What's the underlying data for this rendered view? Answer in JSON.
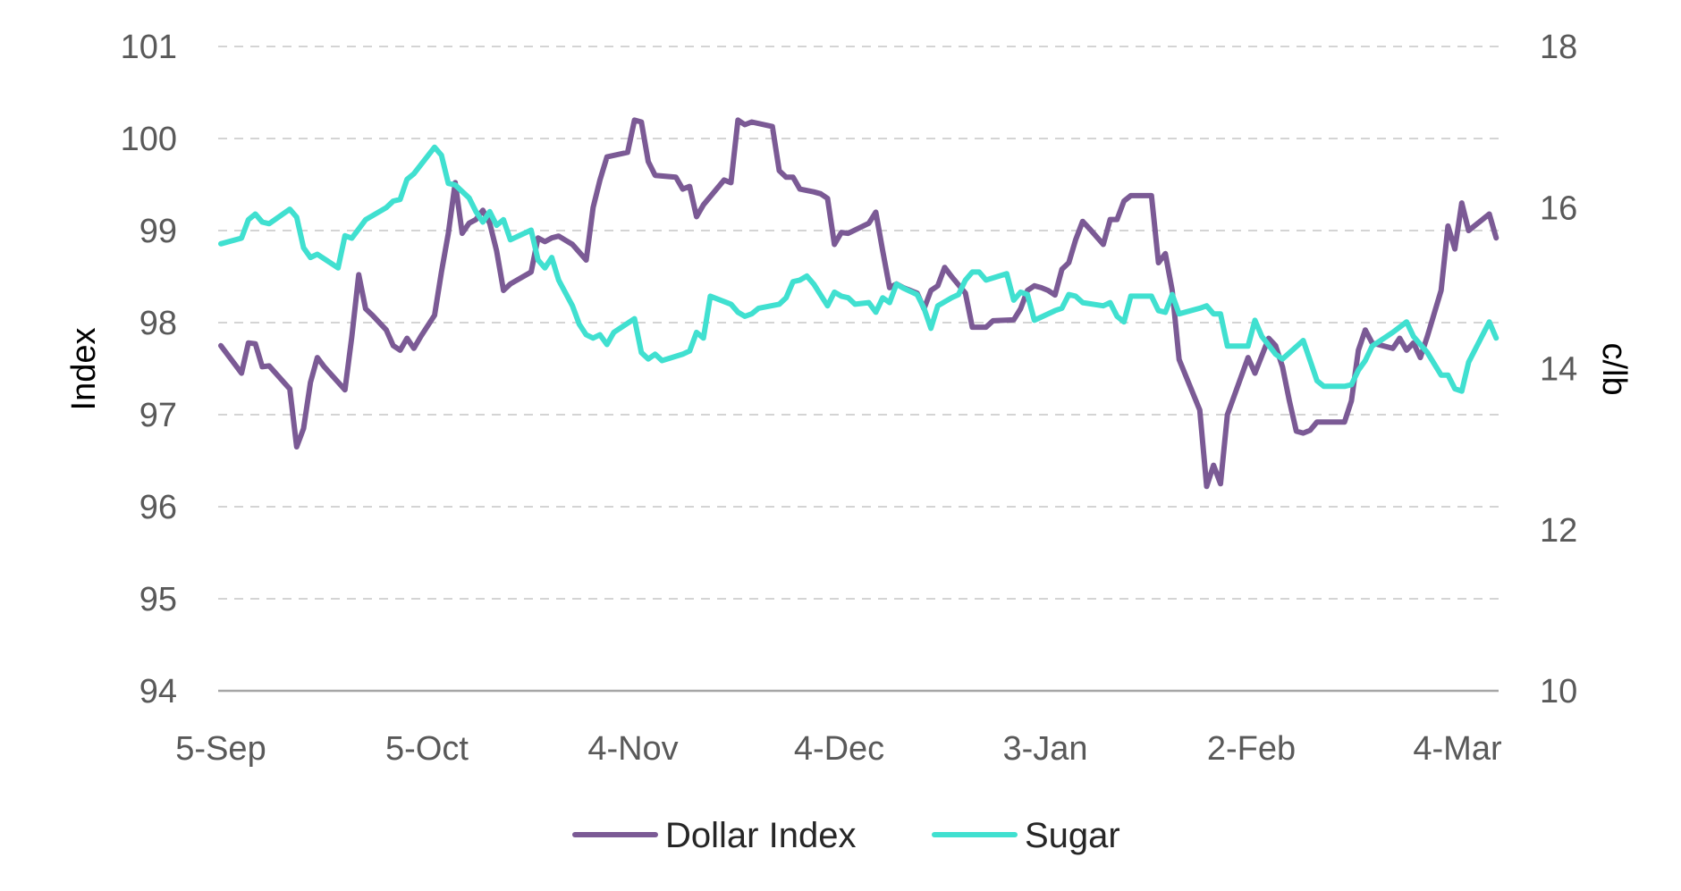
{
  "chart_data": {
    "type": "line",
    "title": "",
    "ylabel": "Index",
    "y2label": "c/lb",
    "ylim": [
      94,
      101
    ],
    "y2lim": [
      10,
      18
    ],
    "yticks": [
      94,
      95,
      96,
      97,
      98,
      99,
      100,
      101
    ],
    "y2ticks": [
      10,
      12,
      14,
      16,
      18
    ],
    "grid": true,
    "legend_position": "bottom",
    "categories": [
      "5-Sep",
      "5-Oct",
      "4-Nov",
      "4-Dec",
      "3-Jan",
      "2-Feb",
      "4-Mar"
    ],
    "x_range_days": [
      0,
      187
    ],
    "series": [
      {
        "name": "Dollar Index",
        "axis": "left",
        "color": "#7b5a95",
        "points": [
          [
            0,
            97.75
          ],
          [
            3,
            97.45
          ],
          [
            4,
            97.78
          ],
          [
            5,
            97.77
          ],
          [
            6,
            97.52
          ],
          [
            7,
            97.53
          ],
          [
            10,
            97.28
          ],
          [
            11,
            96.65
          ],
          [
            12,
            96.85
          ],
          [
            13,
            97.35
          ],
          [
            14,
            97.62
          ],
          [
            15,
            97.52
          ],
          [
            18,
            97.27
          ],
          [
            19,
            97.85
          ],
          [
            20,
            98.52
          ],
          [
            21,
            98.15
          ],
          [
            22,
            98.08
          ],
          [
            24,
            97.92
          ],
          [
            25,
            97.75
          ],
          [
            26,
            97.7
          ],
          [
            27,
            97.83
          ],
          [
            28,
            97.72
          ],
          [
            29,
            97.85
          ],
          [
            31,
            98.08
          ],
          [
            32,
            98.55
          ],
          [
            33,
            98.97
          ],
          [
            34,
            99.52
          ],
          [
            35,
            98.97
          ],
          [
            36,
            99.08
          ],
          [
            37,
            99.12
          ],
          [
            38,
            99.22
          ],
          [
            39,
            99.08
          ],
          [
            40,
            98.78
          ],
          [
            41,
            98.35
          ],
          [
            42,
            98.42
          ],
          [
            45,
            98.55
          ],
          [
            46,
            98.92
          ],
          [
            47,
            98.88
          ],
          [
            48,
            98.92
          ],
          [
            49,
            98.94
          ],
          [
            51,
            98.85
          ],
          [
            53,
            98.68
          ],
          [
            54,
            99.25
          ],
          [
            55,
            99.55
          ],
          [
            56,
            99.8
          ],
          [
            59,
            99.85
          ],
          [
            60,
            100.2
          ],
          [
            61,
            100.18
          ],
          [
            62,
            99.75
          ],
          [
            63,
            99.6
          ],
          [
            66,
            99.58
          ],
          [
            67,
            99.45
          ],
          [
            68,
            99.48
          ],
          [
            69,
            99.15
          ],
          [
            70,
            99.28
          ],
          [
            73,
            99.55
          ],
          [
            74,
            99.52
          ],
          [
            75,
            100.2
          ],
          [
            76,
            100.15
          ],
          [
            77,
            100.18
          ],
          [
            80,
            100.13
          ],
          [
            81,
            99.65
          ],
          [
            82,
            99.58
          ],
          [
            83,
            99.58
          ],
          [
            84,
            99.45
          ],
          [
            86,
            99.42
          ],
          [
            87,
            99.4
          ],
          [
            88,
            99.35
          ],
          [
            89,
            98.85
          ],
          [
            90,
            98.98
          ],
          [
            91,
            98.97
          ],
          [
            94,
            99.08
          ],
          [
            95,
            99.2
          ],
          [
            96,
            98.78
          ],
          [
            97,
            98.38
          ],
          [
            98,
            98.42
          ],
          [
            99,
            98.38
          ],
          [
            101,
            98.32
          ],
          [
            102,
            98.15
          ],
          [
            103,
            98.35
          ],
          [
            104,
            98.4
          ],
          [
            105,
            98.6
          ],
          [
            106,
            98.5
          ],
          [
            108,
            98.32
          ],
          [
            109,
            97.95
          ],
          [
            111,
            97.95
          ],
          [
            112,
            98.02
          ],
          [
            115,
            98.03
          ],
          [
            116,
            98.15
          ],
          [
            117,
            98.35
          ],
          [
            118,
            98.4
          ],
          [
            119,
            98.38
          ],
          [
            120,
            98.35
          ],
          [
            121,
            98.3
          ],
          [
            122,
            98.58
          ],
          [
            123,
            98.65
          ],
          [
            124,
            98.9
          ],
          [
            125,
            99.1
          ],
          [
            126,
            99.02
          ],
          [
            128,
            98.85
          ],
          [
            129,
            99.12
          ],
          [
            130,
            99.12
          ],
          [
            131,
            99.32
          ],
          [
            132,
            99.38
          ],
          [
            135,
            99.38
          ],
          [
            136,
            98.65
          ],
          [
            137,
            98.75
          ],
          [
            138,
            98.35
          ],
          [
            139,
            97.6
          ],
          [
            142,
            97.05
          ],
          [
            143,
            96.22
          ],
          [
            144,
            96.45
          ],
          [
            145,
            96.25
          ],
          [
            146,
            97.0
          ],
          [
            149,
            97.62
          ],
          [
            150,
            97.45
          ],
          [
            152,
            97.83
          ],
          [
            153,
            97.75
          ],
          [
            154,
            97.52
          ],
          [
            155,
            97.15
          ],
          [
            156,
            96.82
          ],
          [
            157,
            96.8
          ],
          [
            158,
            96.83
          ],
          [
            159,
            96.92
          ],
          [
            163,
            96.92
          ],
          [
            164,
            97.15
          ],
          [
            165,
            97.7
          ],
          [
            166,
            97.92
          ],
          [
            167,
            97.78
          ],
          [
            170,
            97.72
          ],
          [
            171,
            97.83
          ],
          [
            172,
            97.7
          ],
          [
            173,
            97.78
          ],
          [
            174,
            97.62
          ],
          [
            175,
            97.85
          ],
          [
            177,
            98.35
          ],
          [
            178,
            99.05
          ],
          [
            179,
            98.8
          ],
          [
            180,
            99.3
          ],
          [
            181,
            99.0
          ],
          [
            184,
            99.18
          ],
          [
            185,
            98.92
          ]
        ]
      },
      {
        "name": "Sugar",
        "axis": "right",
        "color": "#40e0d0",
        "points": [
          [
            0,
            15.55
          ],
          [
            3,
            15.62
          ],
          [
            4,
            15.85
          ],
          [
            5,
            15.92
          ],
          [
            6,
            15.82
          ],
          [
            7,
            15.8
          ],
          [
            10,
            15.98
          ],
          [
            11,
            15.88
          ],
          [
            12,
            15.5
          ],
          [
            13,
            15.38
          ],
          [
            14,
            15.42
          ],
          [
            17,
            15.25
          ],
          [
            18,
            15.65
          ],
          [
            19,
            15.62
          ],
          [
            21,
            15.85
          ],
          [
            24,
            16.0
          ],
          [
            25,
            16.08
          ],
          [
            26,
            16.1
          ],
          [
            27,
            16.35
          ],
          [
            28,
            16.42
          ],
          [
            31,
            16.75
          ],
          [
            32,
            16.65
          ],
          [
            33,
            16.3
          ],
          [
            34,
            16.28
          ],
          [
            36,
            16.12
          ],
          [
            37,
            15.95
          ],
          [
            38,
            15.82
          ],
          [
            39,
            15.95
          ],
          [
            40,
            15.78
          ],
          [
            41,
            15.85
          ],
          [
            42,
            15.6
          ],
          [
            45,
            15.72
          ],
          [
            46,
            15.35
          ],
          [
            47,
            15.25
          ],
          [
            48,
            15.38
          ],
          [
            49,
            15.1
          ],
          [
            51,
            14.78
          ],
          [
            52,
            14.55
          ],
          [
            53,
            14.42
          ],
          [
            54,
            14.38
          ],
          [
            55,
            14.42
          ],
          [
            56,
            14.3
          ],
          [
            57,
            14.45
          ],
          [
            60,
            14.62
          ],
          [
            61,
            14.2
          ],
          [
            62,
            14.12
          ],
          [
            63,
            14.18
          ],
          [
            64,
            14.1
          ],
          [
            67,
            14.18
          ],
          [
            68,
            14.22
          ],
          [
            69,
            14.45
          ],
          [
            70,
            14.38
          ],
          [
            71,
            14.9
          ],
          [
            74,
            14.8
          ],
          [
            75,
            14.7
          ],
          [
            76,
            14.65
          ],
          [
            77,
            14.68
          ],
          [
            78,
            14.75
          ],
          [
            81,
            14.8
          ],
          [
            82,
            14.88
          ],
          [
            83,
            15.08
          ],
          [
            84,
            15.1
          ],
          [
            85,
            15.15
          ],
          [
            86,
            15.05
          ],
          [
            88,
            14.78
          ],
          [
            89,
            14.95
          ],
          [
            90,
            14.9
          ],
          [
            91,
            14.88
          ],
          [
            92,
            14.8
          ],
          [
            94,
            14.82
          ],
          [
            95,
            14.7
          ],
          [
            96,
            14.88
          ],
          [
            97,
            14.82
          ],
          [
            98,
            15.05
          ],
          [
            99,
            15.0
          ],
          [
            101,
            14.92
          ],
          [
            102,
            14.75
          ],
          [
            103,
            14.5
          ],
          [
            104,
            14.78
          ],
          [
            106,
            14.88
          ],
          [
            107,
            14.92
          ],
          [
            108,
            15.1
          ],
          [
            109,
            15.2
          ],
          [
            110,
            15.2
          ],
          [
            111,
            15.1
          ],
          [
            114,
            15.18
          ],
          [
            115,
            14.85
          ],
          [
            116,
            14.95
          ],
          [
            117,
            14.92
          ],
          [
            118,
            14.6
          ],
          [
            121,
            14.72
          ],
          [
            122,
            14.75
          ],
          [
            123,
            14.92
          ],
          [
            124,
            14.9
          ],
          [
            125,
            14.82
          ],
          [
            128,
            14.78
          ],
          [
            129,
            14.82
          ],
          [
            130,
            14.65
          ],
          [
            131,
            14.58
          ],
          [
            132,
            14.9
          ],
          [
            135,
            14.9
          ],
          [
            136,
            14.72
          ],
          [
            137,
            14.7
          ],
          [
            138,
            14.92
          ],
          [
            139,
            14.68
          ],
          [
            142,
            14.75
          ],
          [
            143,
            14.78
          ],
          [
            144,
            14.68
          ],
          [
            145,
            14.68
          ],
          [
            146,
            14.28
          ],
          [
            149,
            14.28
          ],
          [
            150,
            14.6
          ],
          [
            151,
            14.4
          ],
          [
            153,
            14.18
          ],
          [
            154,
            14.12
          ],
          [
            157,
            14.35
          ],
          [
            158,
            14.1
          ],
          [
            159,
            13.85
          ],
          [
            160,
            13.78
          ],
          [
            163,
            13.78
          ],
          [
            164,
            13.8
          ],
          [
            165,
            13.98
          ],
          [
            166,
            14.1
          ],
          [
            167,
            14.28
          ],
          [
            170,
            14.45
          ],
          [
            172,
            14.58
          ],
          [
            173,
            14.4
          ],
          [
            175,
            14.2
          ],
          [
            177,
            13.92
          ],
          [
            178,
            13.92
          ],
          [
            179,
            13.75
          ],
          [
            180,
            13.72
          ],
          [
            181,
            14.08
          ],
          [
            184,
            14.58
          ],
          [
            185,
            14.38
          ]
        ]
      }
    ]
  }
}
